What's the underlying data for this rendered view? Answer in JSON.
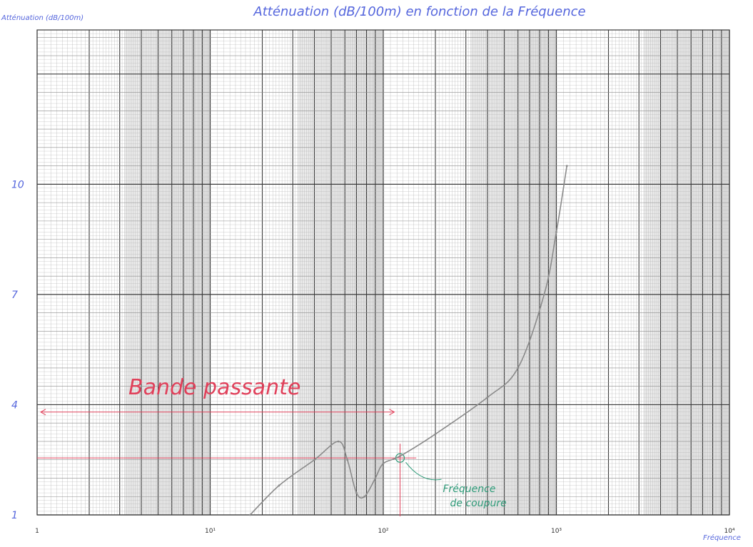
{
  "chart_data": {
    "type": "line",
    "title": "Atténuation (dB/100m) en fonction de la Fréquence",
    "ylabel": "Atténuation (dB/100m)",
    "xlabel": "Fréquence",
    "x_scale": "log",
    "xlim": [
      1,
      10000
    ],
    "ylim": [
      1,
      14.2
    ],
    "grid": true,
    "x_ticks": [
      {
        "value": 1,
        "label": "1"
      },
      {
        "value": 10,
        "label": "10¹"
      },
      {
        "value": 100,
        "label": "10²"
      },
      {
        "value": 1000,
        "label": "10³"
      },
      {
        "value": 10000,
        "label": "10⁴"
      }
    ],
    "y_ticks": [
      {
        "value": 1,
        "label": "1"
      },
      {
        "value": 4,
        "label": "4"
      },
      {
        "value": 7,
        "label": "7"
      },
      {
        "value": 10,
        "label": "10"
      }
    ],
    "series": [
      {
        "x": [
          17,
          25,
          40,
          55,
          62,
          70,
          78,
          90,
          100,
          125,
          200,
          400,
          600,
          850,
          1000,
          1150
        ],
        "y": [
          1.0,
          1.8,
          2.5,
          3.0,
          2.5,
          1.6,
          1.5,
          2.0,
          2.4,
          2.6,
          3.2,
          4.2,
          5.0,
          7.0,
          8.7,
          10.5
        ],
        "color": "#8a8a8a"
      }
    ],
    "annotations": [
      {
        "text": "Bande passante",
        "color": "#e0405a",
        "x_range": [
          1,
          125
        ],
        "y": 3.8
      },
      {
        "text": "Fréquence de coupure",
        "color": "#2e9a78",
        "x": 125,
        "y": 2.55
      }
    ],
    "colors": {
      "text_blue": "#5566dd",
      "annotation_red": "#e0405a",
      "annotation_green": "#2e9a78",
      "grid_dark": "#3a3a3a",
      "grid_light": "#b0b0b0",
      "curve": "#8a8a8a"
    }
  }
}
